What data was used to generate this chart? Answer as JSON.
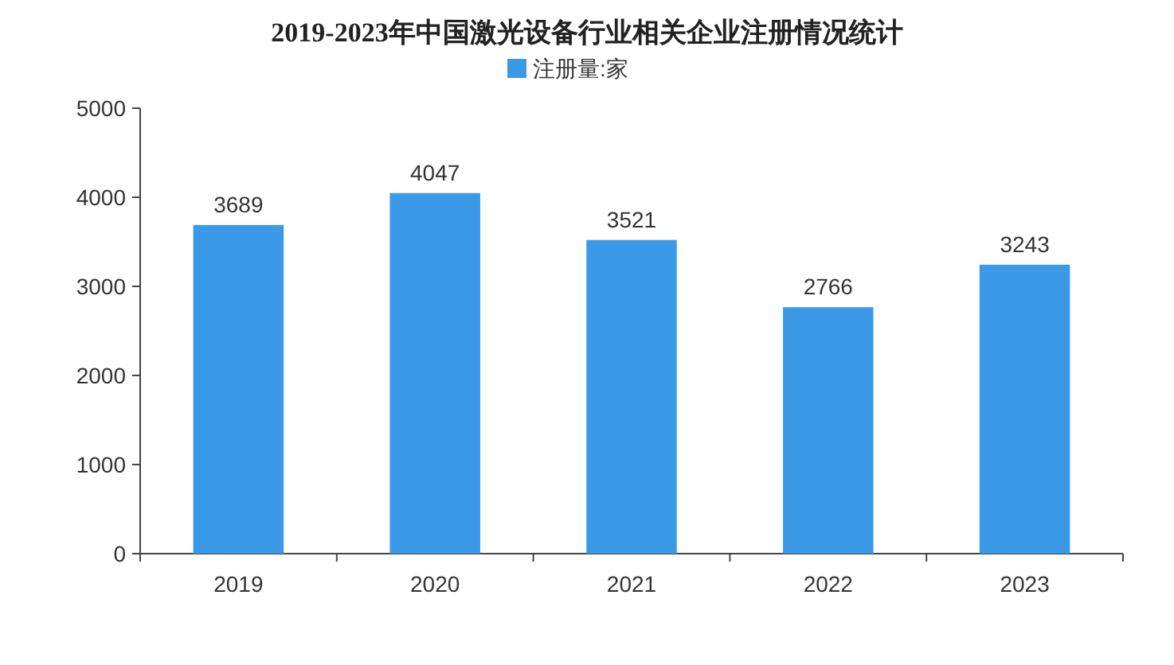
{
  "chart_data": {
    "type": "bar",
    "title": "2019-2023年中国激光设备行业相关企业注册情况统计",
    "categories": [
      "2019",
      "2020",
      "2021",
      "2022",
      "2023"
    ],
    "series": [
      {
        "name": "注册量:家",
        "color": "#3a9ae8",
        "values": [
          3689,
          4047,
          3521,
          2766,
          3243
        ]
      }
    ],
    "ylim": [
      0,
      5000
    ],
    "yticks": [
      0,
      1000,
      2000,
      3000,
      4000,
      5000
    ],
    "data_labels": true,
    "legend": "top"
  }
}
